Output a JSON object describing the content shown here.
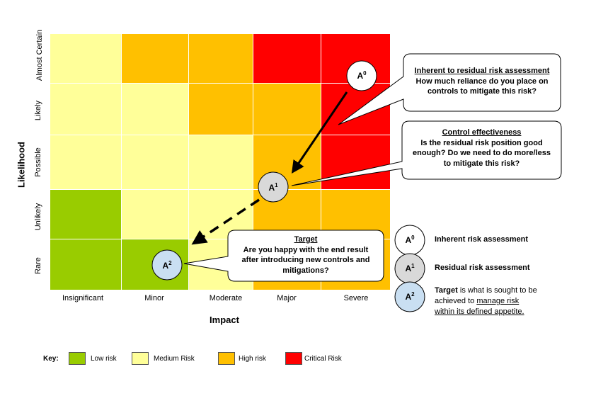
{
  "colors": {
    "low": "#99cc00",
    "medium": "#ffff99",
    "high": "#ffc000",
    "critical": "#ff0000",
    "target_circle": "#c9dff2",
    "residual_circle": "#d9d9d9",
    "inherent_circle": "#ffffff"
  },
  "axes": {
    "y_title": "Likelihood",
    "x_title": "Impact",
    "likelihood_levels": [
      "Almost Certain",
      "Likely",
      "Possible",
      "Unlikely",
      "Rare"
    ],
    "impact_levels": [
      "Insignificant",
      "Minor",
      "Moderate",
      "Major",
      "Severe"
    ]
  },
  "matrix": [
    [
      "medium",
      "high",
      "high",
      "critical",
      "critical"
    ],
    [
      "medium",
      "medium",
      "high",
      "high",
      "critical"
    ],
    [
      "medium",
      "medium",
      "medium",
      "high",
      "critical"
    ],
    [
      "low",
      "medium",
      "medium",
      "high",
      "high"
    ],
    [
      "low",
      "low",
      "medium",
      "high",
      "high"
    ]
  ],
  "markers": {
    "a0": {
      "base": "A",
      "sup": "0"
    },
    "a1": {
      "base": "A",
      "sup": "1"
    },
    "a2": {
      "base": "A",
      "sup": "2"
    }
  },
  "callouts": {
    "inherent": {
      "title": "Inherent to residual risk assessment",
      "line1": "How much reliance do you place on",
      "line2": "controls to mitigate this risk?"
    },
    "control": {
      "title": "Control effectiveness",
      "line1": "Is the residual risk position good",
      "line2": "enough? Do we need to do more/less",
      "line3": "to mitigate this risk?"
    },
    "target": {
      "title": "Target",
      "line1": "Are you happy with the end result",
      "line2": "after introducing new controls and",
      "line3": "mitigations?"
    }
  },
  "legend": {
    "inherent": "Inherent risk assessment",
    "residual": "Residual  risk assessment",
    "target_word": "Target",
    "target_line1_rest": " is what is sought to be",
    "target_line2_pre": "achieved to ",
    "target_line2_link": "manage risk",
    "target_line3": "within its defined appetite."
  },
  "key": {
    "label": "Key:",
    "low": "Low risk",
    "medium": "Medium Risk",
    "high": "High risk",
    "critical": "Critical Risk"
  }
}
